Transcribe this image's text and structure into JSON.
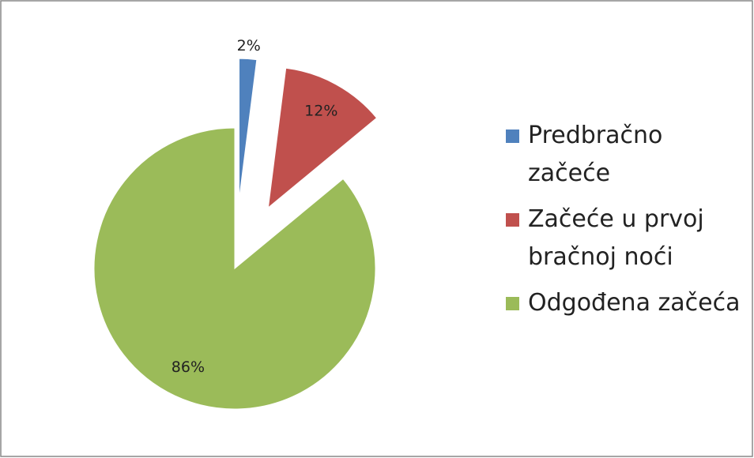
{
  "chart_data": {
    "type": "pie",
    "categories": [
      "Predbračno začeće",
      "Začeće u prvoj bračnoj noći",
      "Odgođena začeća"
    ],
    "values": [
      2,
      12,
      86
    ],
    "value_labels": [
      "2%",
      "12%",
      "86%"
    ],
    "colors": [
      "#4f81bd",
      "#c0504d",
      "#9bbb59"
    ],
    "legend": "right"
  }
}
